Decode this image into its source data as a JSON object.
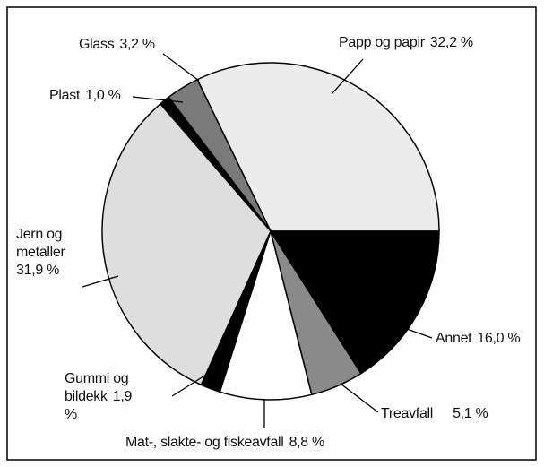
{
  "chart_data": {
    "type": "pie",
    "categories": [
      "Papp og papir",
      "Glass",
      "Plast",
      "Jern og metaller",
      "Gummi og bildekk",
      "Mat-, slakte- og fiskeavfall",
      "Treavfall",
      "Annet"
    ],
    "values": [
      32.2,
      3.2,
      1.0,
      31.9,
      1.9,
      8.8,
      5.1,
      16.0
    ],
    "value_labels": [
      "32,2 %",
      "3,2 %",
      "1,0 %",
      "31,9 %",
      "1,9 %",
      "8,8 %",
      "5,1 %",
      "16,0 %"
    ],
    "colors": [
      "#ececec",
      "#7a7a7a",
      "#000000",
      "#dedede",
      "#000000",
      "#ffffff",
      "#8a8a8a",
      "#000000"
    ]
  }
}
